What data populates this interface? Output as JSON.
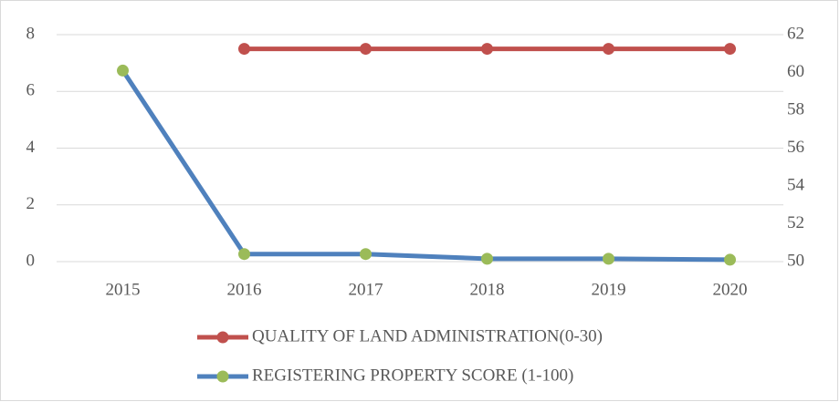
{
  "chart_data": {
    "type": "line",
    "categories": [
      "2015",
      "2016",
      "2017",
      "2018",
      "2019",
      "2020"
    ],
    "series": [
      {
        "name": "QUALITY OF LAND ADMINISTRATION(0-30)",
        "color": "#c0504d",
        "marker_color": "#c0504d",
        "axis": "y",
        "values": [
          null,
          7.5,
          7.5,
          7.5,
          7.5,
          7.5
        ]
      },
      {
        "name": "REGISTERING PROPERTY SCORE (1-100)",
        "color": "#4f81bd",
        "marker_color": "#9bbb59",
        "axis": "y2",
        "values": [
          60.1,
          50.4,
          50.4,
          50.15,
          50.15,
          50.1
        ]
      }
    ],
    "ylim": [
      0,
      8
    ],
    "yticks": [
      0,
      2,
      4,
      6,
      8
    ],
    "y2lim": [
      50,
      62
    ],
    "y2ticks": [
      50,
      52,
      54,
      56,
      58,
      60,
      62
    ],
    "grid": true,
    "legend": "bottom"
  }
}
